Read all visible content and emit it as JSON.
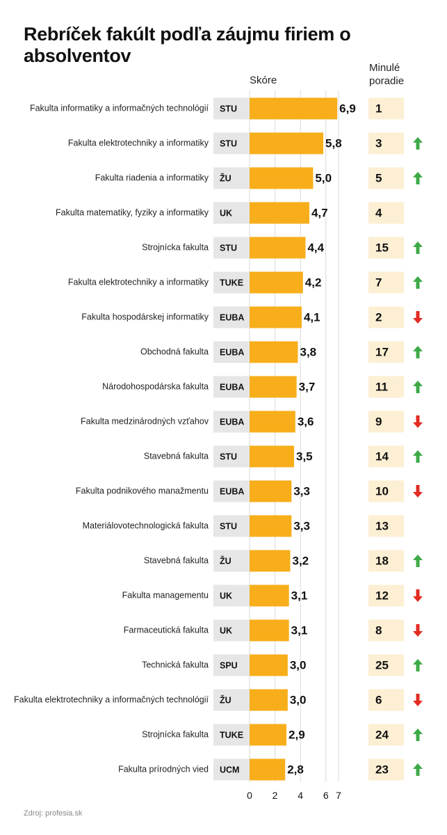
{
  "title": "Rebríček fakúlt podľa záujmu firiem o absolventov",
  "source": "Zdroj: profesia.sk",
  "colors": {
    "bar": "#F7AE1A",
    "uni_box": "#E6E6E6",
    "prev_box": "#FCEFD3",
    "arrow_up": "#3DAA47",
    "arrow_down": "#E32B22",
    "grid": "#D9D9D9"
  },
  "chart_data": {
    "type": "bar",
    "orientation": "horizontal",
    "xlabel": "Skóre",
    "prev_rank_header": "Minulé poradie",
    "xlim": [
      0,
      7
    ],
    "xticks": [
      0,
      2,
      4,
      6,
      7
    ],
    "grid": true,
    "rows": [
      {
        "faculty": "Fakulta informatiky a informačných technológií",
        "university": "STU",
        "score": 6.9,
        "score_label": "6,9",
        "previous_rank": "1",
        "trend": "none"
      },
      {
        "faculty": "Fakulta elektrotechniky a informatiky",
        "university": "STU",
        "score": 5.8,
        "score_label": "5,8",
        "previous_rank": "3",
        "trend": "up"
      },
      {
        "faculty": "Fakulta riadenia a informatiky",
        "university": "ŽU",
        "score": 5.0,
        "score_label": "5,0",
        "previous_rank": "5",
        "trend": "up"
      },
      {
        "faculty": "Fakulta matematiky, fyziky a informatiky",
        "university": "UK",
        "score": 4.7,
        "score_label": "4,7",
        "previous_rank": "4",
        "trend": "none"
      },
      {
        "faculty": "Strojnícka fakulta",
        "university": "STU",
        "score": 4.4,
        "score_label": "4,4",
        "previous_rank": "15",
        "trend": "up"
      },
      {
        "faculty": "Fakulta elektrotechniky a informatiky",
        "university": "TUKE",
        "score": 4.2,
        "score_label": "4,2",
        "previous_rank": "7",
        "trend": "up"
      },
      {
        "faculty": "Fakulta hospodárskej informatiky",
        "university": "EUBA",
        "score": 4.1,
        "score_label": "4,1",
        "previous_rank": "2",
        "trend": "down"
      },
      {
        "faculty": "Obchodná fakulta",
        "university": "EUBA",
        "score": 3.8,
        "score_label": "3,8",
        "previous_rank": "17",
        "trend": "up"
      },
      {
        "faculty": "Národohospodárska fakulta",
        "university": "EUBA",
        "score": 3.7,
        "score_label": "3,7",
        "previous_rank": "11",
        "trend": "up"
      },
      {
        "faculty": "Fakulta medzinárodných vzťahov",
        "university": "EUBA",
        "score": 3.6,
        "score_label": "3,6",
        "previous_rank": "9",
        "trend": "down"
      },
      {
        "faculty": "Stavebná fakulta",
        "university": "STU",
        "score": 3.5,
        "score_label": "3,5",
        "previous_rank": "14",
        "trend": "up"
      },
      {
        "faculty": "Fakulta podnikového manažmentu",
        "university": "EUBA",
        "score": 3.3,
        "score_label": "3,3",
        "previous_rank": "10",
        "trend": "down"
      },
      {
        "faculty": "Materiálovotechnologická fakulta",
        "university": "STU",
        "score": 3.3,
        "score_label": "3,3",
        "previous_rank": "13",
        "trend": "none"
      },
      {
        "faculty": "Stavebná fakulta",
        "university": "ŽU",
        "score": 3.2,
        "score_label": "3,2",
        "previous_rank": "18",
        "trend": "up"
      },
      {
        "faculty": "Fakulta managementu",
        "university": "UK",
        "score": 3.1,
        "score_label": "3,1",
        "previous_rank": "12",
        "trend": "down"
      },
      {
        "faculty": "Farmaceutická fakulta",
        "university": "UK",
        "score": 3.1,
        "score_label": "3,1",
        "previous_rank": "8",
        "trend": "down"
      },
      {
        "faculty": "Technická fakulta",
        "university": "SPU",
        "score": 3.0,
        "score_label": "3,0",
        "previous_rank": "25",
        "trend": "up"
      },
      {
        "faculty": "Fakulta elektrotechniky a informačných technológií",
        "university": "ŽU",
        "score": 3.0,
        "score_label": "3,0",
        "previous_rank": "6",
        "trend": "down"
      },
      {
        "faculty": "Strojnícka fakulta",
        "university": "TUKE",
        "score": 2.9,
        "score_label": "2,9",
        "previous_rank": "24",
        "trend": "up"
      },
      {
        "faculty": "Fakulta prírodných vied",
        "university": "UCM",
        "score": 2.8,
        "score_label": "2,8",
        "previous_rank": "23",
        "trend": "up"
      }
    ]
  }
}
